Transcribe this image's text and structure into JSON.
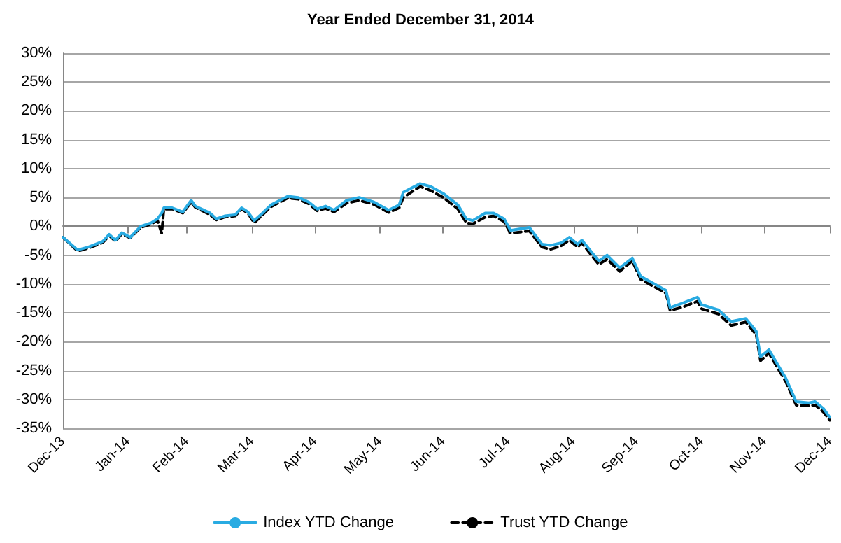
{
  "chart_data": {
    "type": "line",
    "title": "Year Ended December 31, 2014",
    "x": [
      "2013-12-31",
      "2014-01-07",
      "2014-01-12",
      "2014-01-19",
      "2014-01-22",
      "2014-01-25",
      "2014-01-28",
      "2014-02-01",
      "2014-02-06",
      "2014-02-11",
      "2014-02-14",
      "2014-02-16",
      "2014-02-17",
      "2014-02-21",
      "2014-02-26",
      "2014-03-02",
      "2014-03-04",
      "2014-03-11",
      "2014-03-14",
      "2014-03-18",
      "2014-03-23",
      "2014-03-26",
      "2014-03-29",
      "2014-04-01",
      "2014-04-05",
      "2014-04-09",
      "2014-04-17",
      "2014-04-22",
      "2014-04-27",
      "2014-05-01",
      "2014-05-05",
      "2014-05-09",
      "2014-05-15",
      "2014-05-21",
      "2014-05-28",
      "2014-06-04",
      "2014-06-09",
      "2014-06-11",
      "2014-06-19",
      "2014-06-24",
      "2014-06-30",
      "2014-07-07",
      "2014-07-11",
      "2014-07-14",
      "2014-07-20",
      "2014-07-24",
      "2014-07-29",
      "2014-08-01",
      "2014-08-10",
      "2014-08-16",
      "2014-08-20",
      "2014-08-25",
      "2014-08-29",
      "2014-09-02",
      "2014-09-04",
      "2014-09-12",
      "2014-09-16",
      "2014-09-22",
      "2014-09-28",
      "2014-10-02",
      "2014-10-08",
      "2014-10-14",
      "2014-10-16",
      "2014-10-22",
      "2014-10-29",
      "2014-10-31",
      "2014-11-08",
      "2014-11-14",
      "2014-11-21",
      "2014-11-26",
      "2014-11-28",
      "2014-12-02",
      "2014-12-10",
      "2014-12-15",
      "2014-12-21",
      "2014-12-24",
      "2014-12-28",
      "2014-12-31"
    ],
    "series": [
      {
        "name": "Index YTD Change",
        "color": "#29abe2",
        "line_style": "solid",
        "values": [
          -1.9,
          -4.1,
          -3.6,
          -2.6,
          -1.4,
          -2.4,
          -1.1,
          -1.9,
          0,
          0.6,
          1.3,
          2.3,
          3.2,
          3.2,
          2.5,
          4.5,
          3.5,
          2.3,
          1.3,
          1.8,
          2.0,
          3.2,
          2.5,
          1.0,
          2.3,
          3.7,
          5.2,
          5.0,
          4.2,
          3.0,
          3.5,
          2.8,
          4.5,
          5.0,
          4.2,
          2.8,
          3.7,
          5.9,
          7.4,
          6.9,
          5.7,
          3.7,
          1.3,
          1.0,
          2.3,
          2.3,
          1.3,
          -0.7,
          -0.2,
          -3.1,
          -3.3,
          -2.9,
          -1.9,
          -3.1,
          -2.4,
          -6.0,
          -5.0,
          -7.2,
          -5.5,
          -8.7,
          -9.9,
          -11.1,
          -14.1,
          -13.3,
          -12.3,
          -13.6,
          -14.5,
          -16.5,
          -16.0,
          -18.2,
          -22.6,
          -21.4,
          -26.3,
          -30.4,
          -30.6,
          -30.4,
          -31.6,
          -33.1
        ]
      },
      {
        "name": "Trust YTD Change",
        "color": "#000000",
        "line_style": "dashed",
        "values": [
          -1.9,
          -4.3,
          -3.8,
          -2.8,
          -1.6,
          -2.6,
          -1.3,
          -2.0,
          -0.2,
          0.4,
          1.0,
          -1.2,
          3.0,
          3.0,
          2.3,
          4.2,
          3.3,
          2.0,
          1.1,
          1.6,
          1.8,
          3.0,
          2.3,
          0.6,
          2.0,
          3.4,
          4.9,
          4.7,
          3.9,
          2.7,
          3.1,
          2.5,
          4.0,
          4.5,
          3.8,
          2.4,
          3.2,
          5.0,
          6.9,
          6.2,
          5.0,
          3.0,
          0.6,
          0.4,
          1.6,
          1.8,
          0.8,
          -1.2,
          -0.8,
          -3.6,
          -4.0,
          -3.4,
          -2.4,
          -3.6,
          -2.9,
          -6.6,
          -5.7,
          -7.8,
          -6.0,
          -9.2,
          -10.4,
          -11.6,
          -14.6,
          -14.0,
          -13.0,
          -14.3,
          -15.2,
          -17.2,
          -16.6,
          -18.8,
          -23.3,
          -22.0,
          -26.9,
          -31.0,
          -31.1,
          -31.0,
          -32.2,
          -33.6
        ]
      }
    ],
    "xlim": [
      "2013-12-31",
      "2014-12-31"
    ],
    "xticks": [
      {
        "value": "2013-12-31",
        "label": "Dec-13"
      },
      {
        "value": "2014-01-31",
        "label": "Jan-14"
      },
      {
        "value": "2014-02-28",
        "label": "Feb-14"
      },
      {
        "value": "2014-03-31",
        "label": "Mar-14"
      },
      {
        "value": "2014-04-30",
        "label": "Apr-14"
      },
      {
        "value": "2014-05-31",
        "label": "May-14"
      },
      {
        "value": "2014-06-30",
        "label": "Jun-14"
      },
      {
        "value": "2014-07-31",
        "label": "Jul-14"
      },
      {
        "value": "2014-08-31",
        "label": "Aug-14"
      },
      {
        "value": "2014-09-30",
        "label": "Sep-14"
      },
      {
        "value": "2014-10-31",
        "label": "Oct-14"
      },
      {
        "value": "2014-11-30",
        "label": "Nov-14"
      },
      {
        "value": "2014-12-31",
        "label": "Dec-14"
      }
    ],
    "ylim": [
      -35,
      30
    ],
    "yticks": [
      {
        "value": -35,
        "label": "-35%"
      },
      {
        "value": -30,
        "label": "-30%"
      },
      {
        "value": -25,
        "label": "-25%"
      },
      {
        "value": -20,
        "label": "-20%"
      },
      {
        "value": -15,
        "label": "-15%"
      },
      {
        "value": -10,
        "label": "-10%"
      },
      {
        "value": -5,
        "label": "-5%"
      },
      {
        "value": 0,
        "label": "0%"
      },
      {
        "value": 5,
        "label": "5%"
      },
      {
        "value": 10,
        "label": "10%"
      },
      {
        "value": 15,
        "label": "15%"
      },
      {
        "value": 20,
        "label": "20%"
      },
      {
        "value": 25,
        "label": "25%"
      },
      {
        "value": 30,
        "label": "30%"
      }
    ],
    "grid": "y",
    "legend": "bottom",
    "marker": "none"
  }
}
